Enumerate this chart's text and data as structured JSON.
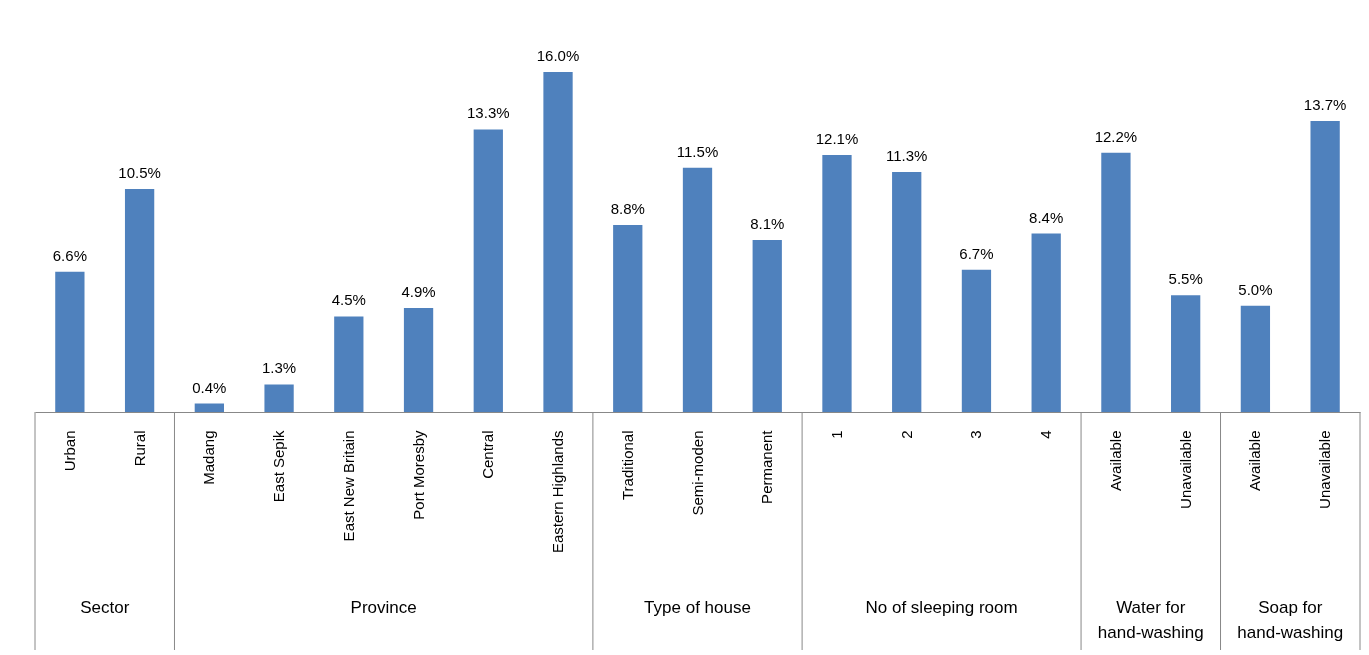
{
  "chart_data": {
    "type": "bar",
    "categories": [
      "Urban",
      "Rural",
      "Madang",
      "East Sepik",
      "East New Britain",
      "Port Moresby",
      "Central",
      "Eastern Highlands",
      "Traditional",
      "Semi-moden",
      "Permanent",
      "1",
      "2",
      "3",
      "4",
      "Available",
      "Unavailable",
      "Available",
      "Unavailable"
    ],
    "values": [
      6.6,
      10.5,
      0.4,
      1.3,
      4.5,
      4.9,
      13.3,
      16.0,
      8.8,
      11.5,
      8.1,
      12.1,
      11.3,
      6.7,
      8.4,
      12.2,
      5.5,
      5.0,
      13.7
    ],
    "value_labels": [
      "6.6%",
      "10.5%",
      "0.4%",
      "1.3%",
      "4.5%",
      "4.9%",
      "13.3%",
      "16.0%",
      "8.8%",
      "11.5%",
      "8.1%",
      "12.1%",
      "11.3%",
      "6.7%",
      "8.4%",
      "12.2%",
      "5.5%",
      "5.0%",
      "13.7%"
    ],
    "color": "#4f81bd",
    "annotations": [
      "Sector",
      "Province",
      "Type of house",
      "No of sleeping room",
      "Water for hand-washing",
      "Soap for hand-washing"
    ]
  }
}
